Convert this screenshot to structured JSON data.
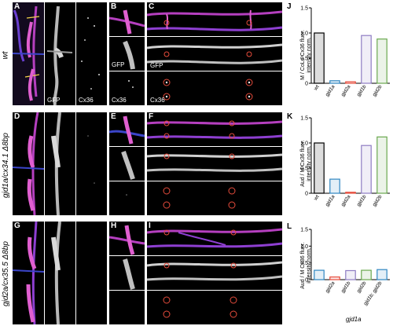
{
  "rows": [
    {
      "label": "wt",
      "letters": [
        "A",
        "B",
        "C"
      ]
    },
    {
      "label": "gjd1a/cx34.1 Δ8bp",
      "letters": [
        "D",
        "E",
        "F"
      ]
    },
    {
      "label": "gjd2a/cx35.5 Δ8bp",
      "letters": [
        "G",
        "H",
        "I"
      ]
    }
  ],
  "channel_labels": {
    "gfp": "GFP",
    "cx36": "Cx36"
  },
  "chart_data": [
    {
      "type": "bar",
      "panel": "J",
      "ylabel": "M / CoLo Cx36 fluor. intensity norm.",
      "ylim": [
        0,
        1.5
      ],
      "yticks": [
        "0",
        "0.5",
        "1.0",
        "1.5"
      ],
      "categories": [
        "wt",
        "gjd1a",
        "gjd2a",
        "gjd1b",
        "gjd2b"
      ],
      "values": [
        1.0,
        0.05,
        0.03,
        0.95,
        0.88
      ],
      "colors": [
        "#000000",
        "#2e86c1",
        "#e74c3c",
        "#8e7cc3",
        "#6aa84f"
      ]
    },
    {
      "type": "bar",
      "panel": "K",
      "ylabel": "Aud / M Cx36 fluor. intensity norm.",
      "ylim": [
        0,
        1.5
      ],
      "yticks": [
        "0",
        "0.5",
        "1.0",
        "1.5"
      ],
      "categories": [
        "wt",
        "gjd1a",
        "gjd2a",
        "gjd1b",
        "gjd2b"
      ],
      "values": [
        1.0,
        0.28,
        0.02,
        0.95,
        1.12
      ],
      "colors": [
        "#000000",
        "#2e86c1",
        "#e74c3c",
        "#8e7cc3",
        "#6aa84f"
      ]
    },
    {
      "type": "bar",
      "panel": "L",
      "ylabel": "Aud / M Cx36 fluor. intensity norm.",
      "ylim": [
        0,
        1.5
      ],
      "yticks": [
        "0",
        "0.5",
        "1.0",
        "1.5"
      ],
      "categories": [
        "",
        "gjd2a",
        "gjd1b",
        "gjd2b",
        "gjd1b; gjd2b"
      ],
      "values": [
        0.28,
        0.08,
        0.27,
        0.28,
        0.3
      ],
      "colors": [
        "#2e86c1",
        "#e74c3c",
        "#8e7cc3",
        "#6aa84f",
        "#2e86c1"
      ],
      "group_label": "gjd1a"
    }
  ]
}
